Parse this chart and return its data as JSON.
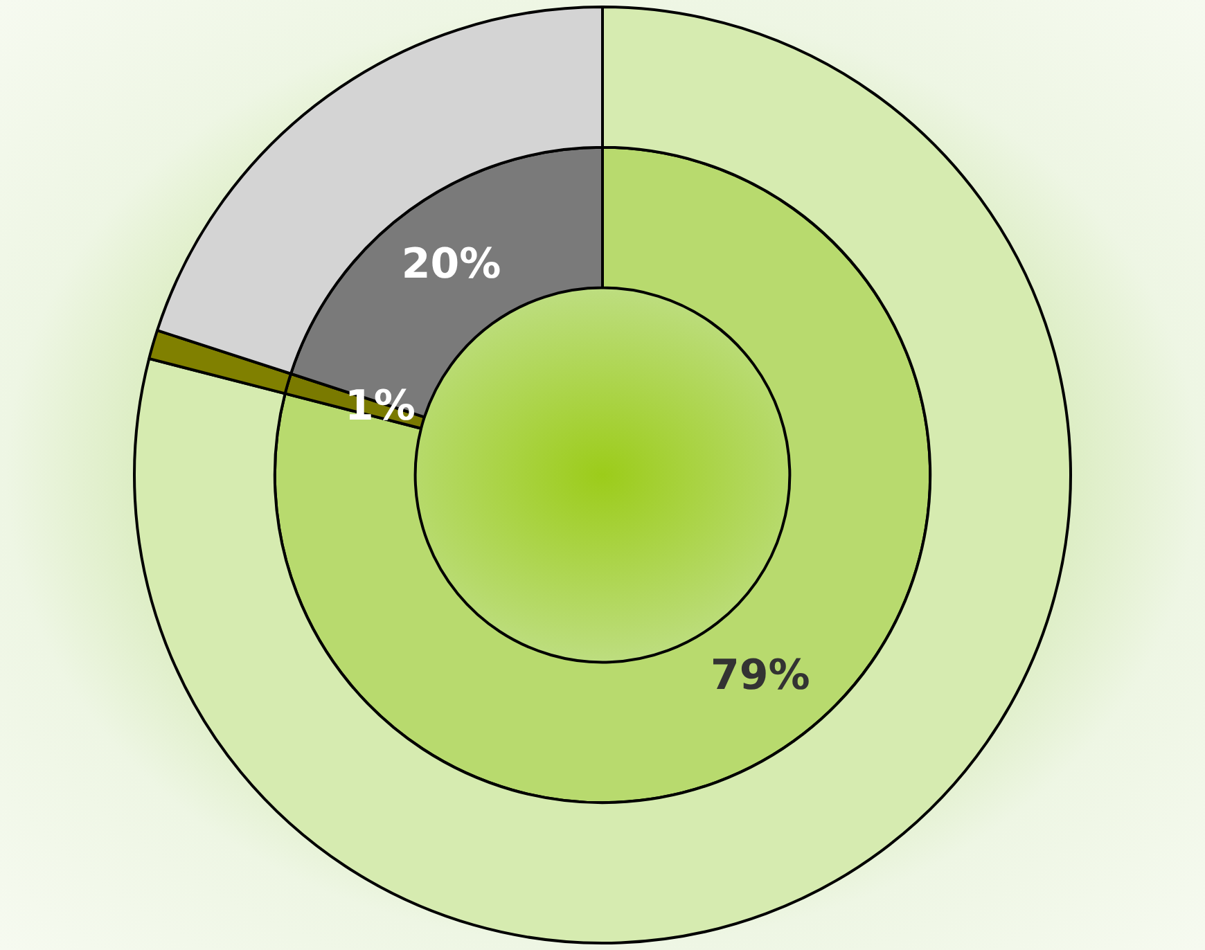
{
  "chart_data": {
    "type": "donut",
    "categories": [
      null,
      null,
      null
    ],
    "series": [
      {
        "colors": [
          "#b8da6e",
          "#7a7a00",
          "#7a7a7a"
        ],
        "values": [
          79,
          1,
          20
        ],
        "value_labels": [
          "79%",
          "1%",
          "20%"
        ]
      },
      {
        "colors": [
          "#d6ebb0",
          "#808000",
          "#d4d4d4"
        ],
        "values": [
          79,
          1,
          20
        ]
      }
    ]
  }
}
